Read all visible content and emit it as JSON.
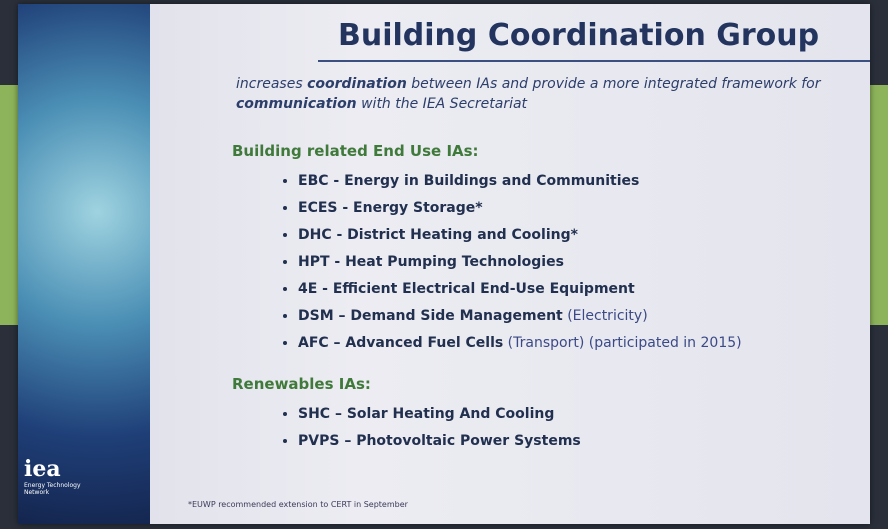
{
  "slide": {
    "title": "Building Coordination Group",
    "subtitle": [
      "increases ",
      "coordination",
      " between IAs and provide a more integrated framework for ",
      "communication",
      " with the IEA Secretariat"
    ],
    "sections": [
      {
        "heading": "Building related End Use IAs:",
        "items": [
          {
            "main": "EBC - Energy in Buildings and Communities"
          },
          {
            "main": "ECES - Energy Storage*"
          },
          {
            "main": "DHC - District Heating and Cooling*"
          },
          {
            "main": "HPT - Heat Pumping Technologies"
          },
          {
            "main": "4E  - Efficient Electrical End-Use Equipment"
          },
          {
            "main": "DSM – Demand Side Management",
            "note": "(Electricity)"
          },
          {
            "main": "AFC – Advanced Fuel Cells",
            "note": "(Transport) (participated in 2015)"
          }
        ]
      },
      {
        "heading": "Renewables IAs:",
        "items": [
          {
            "main": "SHC – Solar Heating And Cooling"
          },
          {
            "main": "PVPS – Photovoltaic Power Systems"
          }
        ]
      }
    ],
    "footnote": "*EUWP recommended extension to CERT in September",
    "logo": {
      "mark": "iea",
      "caption": "Energy Technology Network"
    }
  }
}
